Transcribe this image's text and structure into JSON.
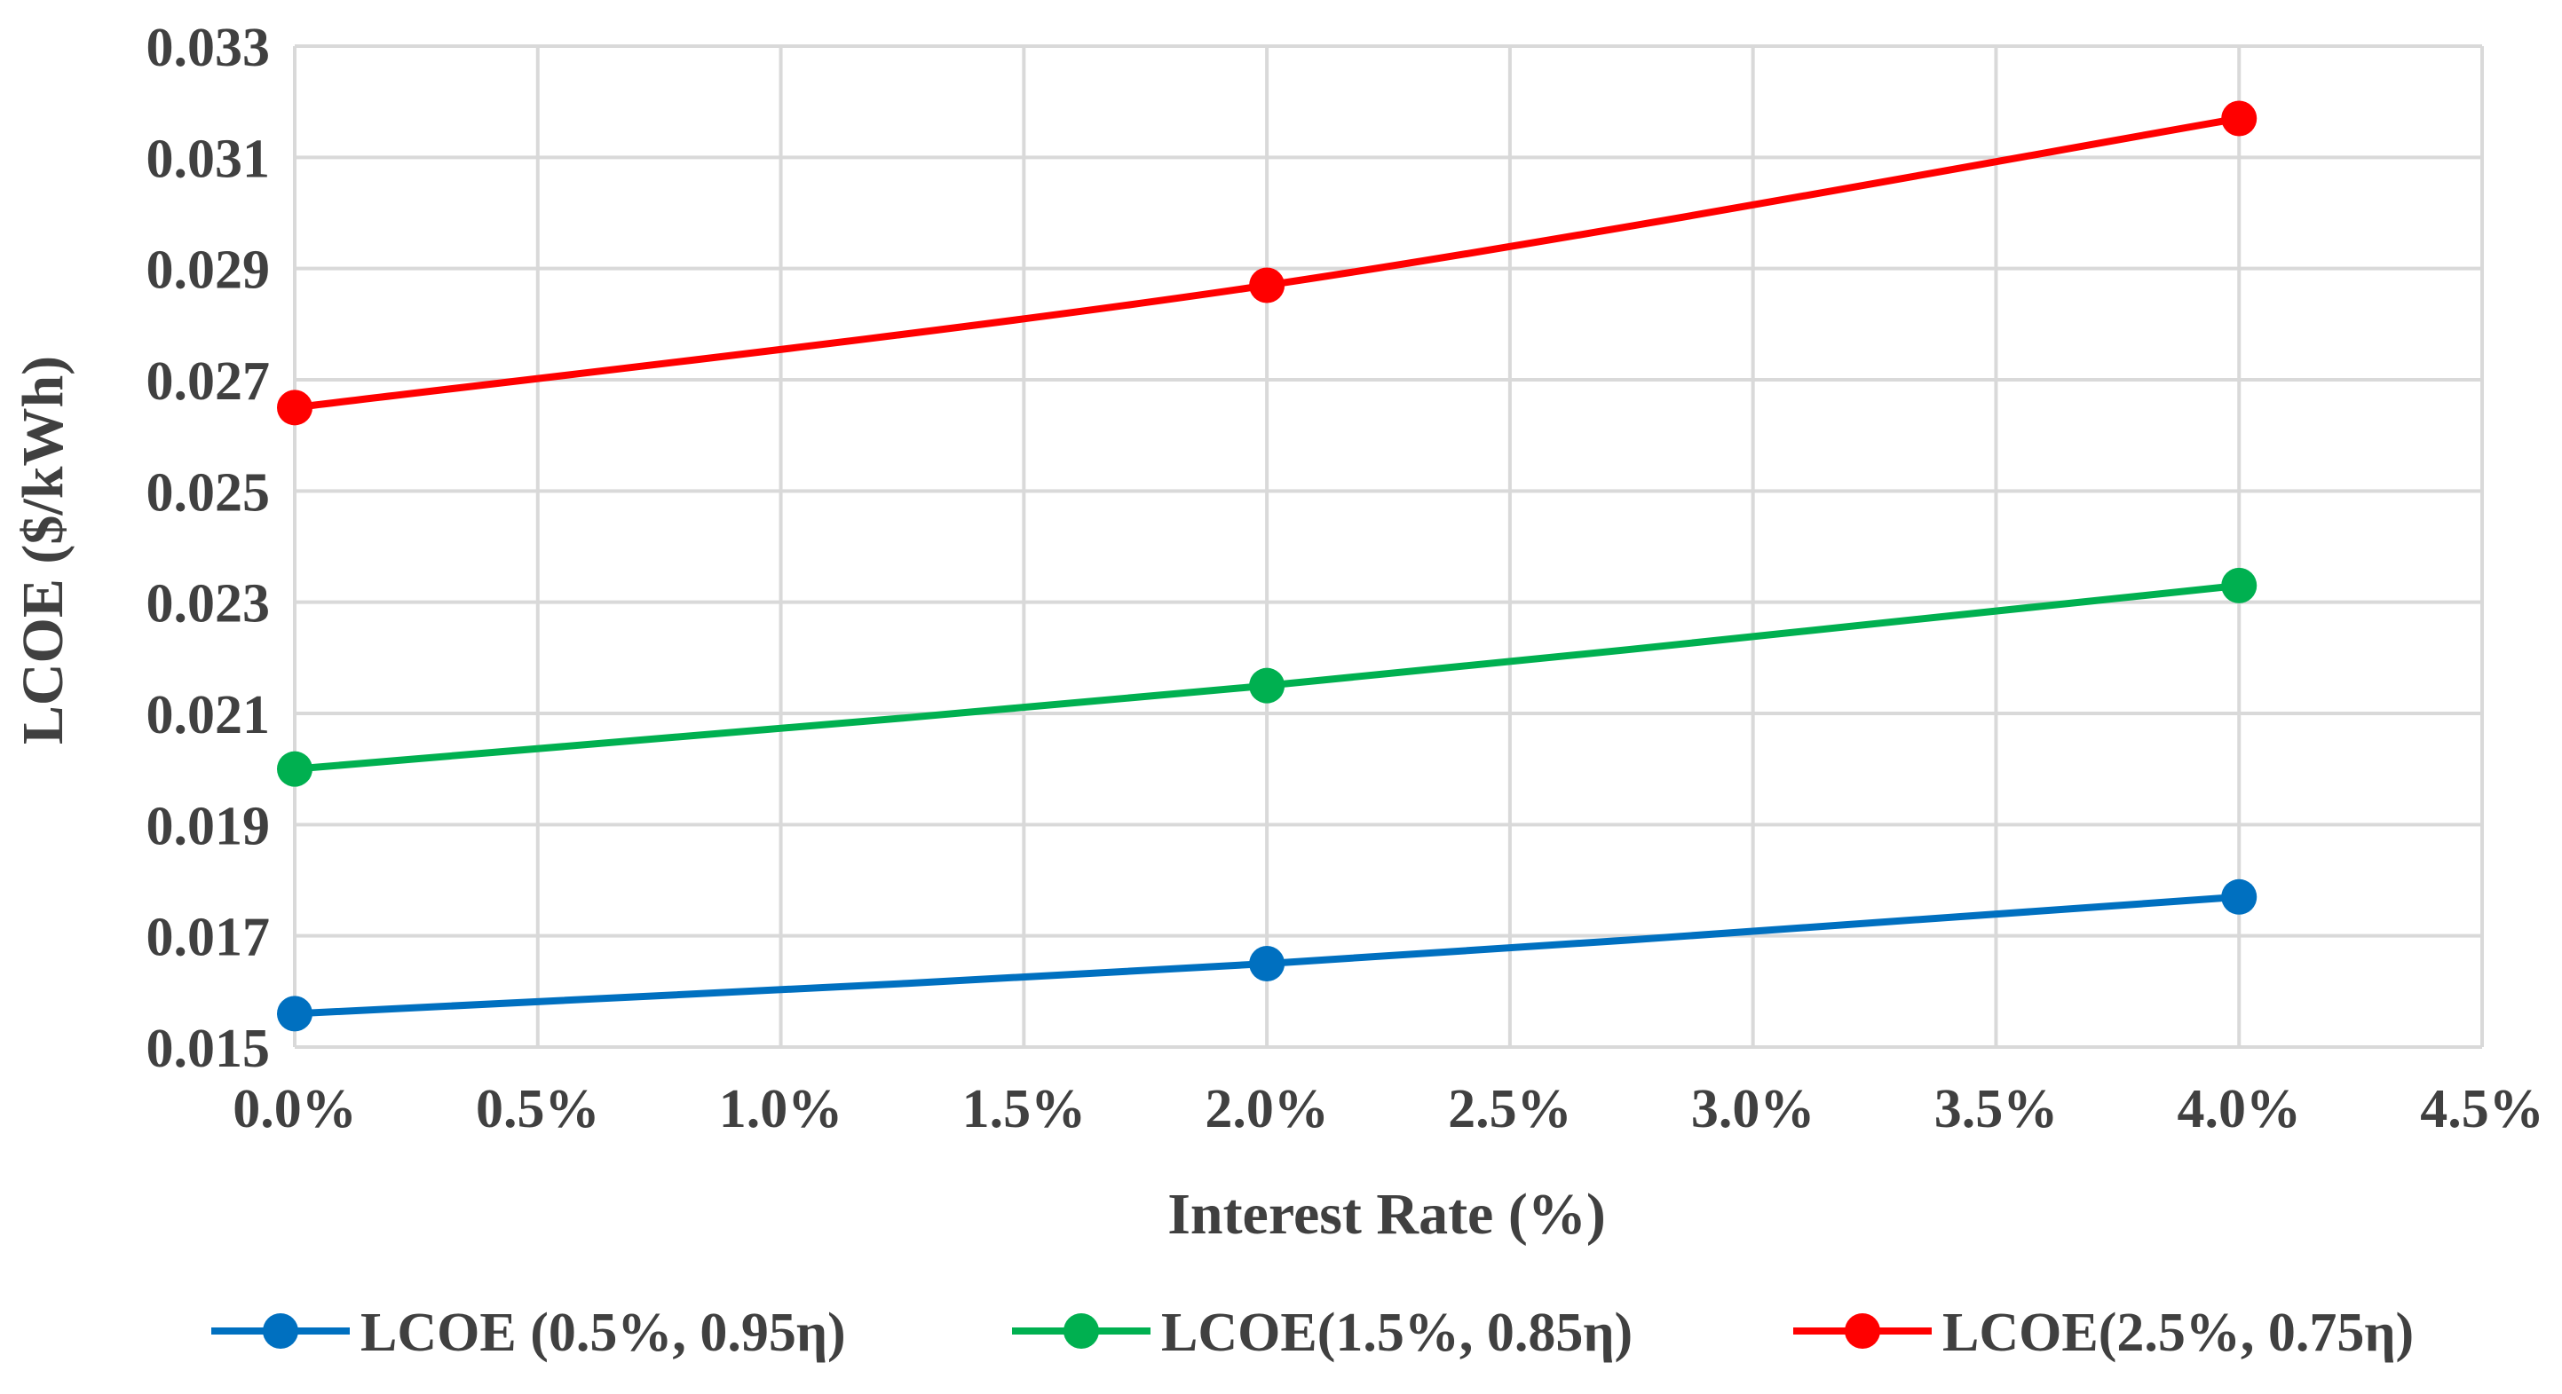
{
  "chart_data": {
    "type": "line",
    "title": "",
    "xlabel": "Interest Rate (%)",
    "ylabel": "LCOE ($/kWh)",
    "xlim": [
      0,
      4.5
    ],
    "ylim": [
      0.015,
      0.033
    ],
    "x_ticks": [
      0,
      0.5,
      1.0,
      1.5,
      2.0,
      2.5,
      3.0,
      3.5,
      4.0,
      4.5
    ],
    "x_tick_labels": [
      "0.0%",
      "0.5%",
      "1.0%",
      "1.5%",
      "2.0%",
      "2.5%",
      "3.0%",
      "3.5%",
      "4.0%",
      "4.5%"
    ],
    "y_ticks": [
      0.015,
      0.017,
      0.019,
      0.021,
      0.023,
      0.025,
      0.027,
      0.029,
      0.031,
      0.033
    ],
    "y_tick_labels": [
      "0.015",
      "0.017",
      "0.019",
      "0.021",
      "0.023",
      "0.025",
      "0.027",
      "0.029",
      "0.031",
      "0.033"
    ],
    "grid": true,
    "legend_position": "bottom",
    "x": [
      0,
      2,
      4
    ],
    "series": [
      {
        "name": "LCOE (0.5%, 0.95η)",
        "color": "#0070C0",
        "values": [
          0.0156,
          0.0165,
          0.0177
        ]
      },
      {
        "name": "LCOE(1.5%, 0.85η)",
        "color": "#00B050",
        "values": [
          0.02,
          0.0215,
          0.0233
        ]
      },
      {
        "name": "LCOE(2.5%, 0.75η)",
        "color": "#FF0000",
        "values": [
          0.0265,
          0.0287,
          0.0317
        ]
      }
    ],
    "grid_color": "#d9d9d9",
    "text_color": "#404040"
  }
}
